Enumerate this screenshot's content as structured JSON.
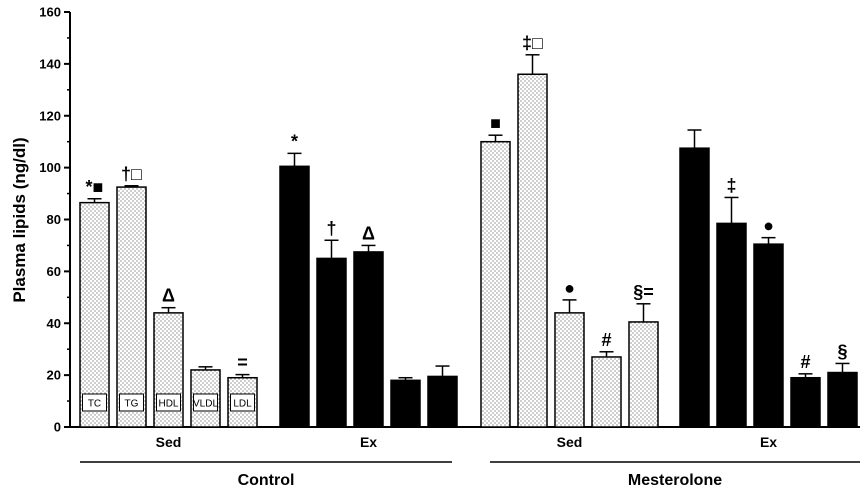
{
  "chart_data": {
    "type": "bar",
    "ylabel": "Plasma lipids  (ng/dl)",
    "ylim": [
      0,
      160
    ],
    "yticks": [
      "0",
      "20",
      "40",
      "60",
      "80",
      "100",
      "120",
      "140",
      "160"
    ],
    "bar_labels": [
      "TC",
      "TG",
      "HDL",
      "VLDL",
      "LDL"
    ],
    "groups": [
      {
        "label": "Sed",
        "treatment": "Control",
        "style": "dotted",
        "colors": {
          "fill": "#ffffff",
          "dots": "#555555"
        },
        "values": [
          86.5,
          92.5,
          44,
          22,
          19
        ],
        "errors": [
          1.5,
          0.5,
          2,
          1.2,
          1.2
        ],
        "markers": [
          "*■",
          "†□",
          "Δ",
          "",
          "="
        ]
      },
      {
        "label": "Ex",
        "treatment": "Control",
        "style": "solid",
        "colors": {
          "fill": "#000000"
        },
        "values": [
          100.5,
          65,
          67.5,
          18,
          19.5
        ],
        "errors": [
          5,
          7,
          2.5,
          1,
          4
        ],
        "markers": [
          "*",
          "†",
          "Δ",
          "",
          ""
        ]
      },
      {
        "label": "Sed",
        "treatment": "Mesterolone",
        "style": "dotted",
        "colors": {
          "fill": "#ffffff",
          "dots": "#555555"
        },
        "values": [
          110,
          136,
          44,
          27,
          40.5
        ],
        "errors": [
          2.5,
          7.5,
          5,
          2,
          7
        ],
        "markers": [
          "■",
          "‡□",
          "●",
          "#",
          "§="
        ]
      },
      {
        "label": "Ex",
        "treatment": "Mesterolone",
        "style": "solid",
        "colors": {
          "fill": "#000000"
        },
        "values": [
          107.5,
          78.5,
          70.5,
          19,
          21
        ],
        "errors": [
          7,
          10,
          2.5,
          1.5,
          3.5
        ],
        "markers": [
          "",
          "‡",
          "●",
          "#",
          "§"
        ]
      }
    ],
    "treatments": [
      "Control",
      "Mesterolone"
    ]
  }
}
